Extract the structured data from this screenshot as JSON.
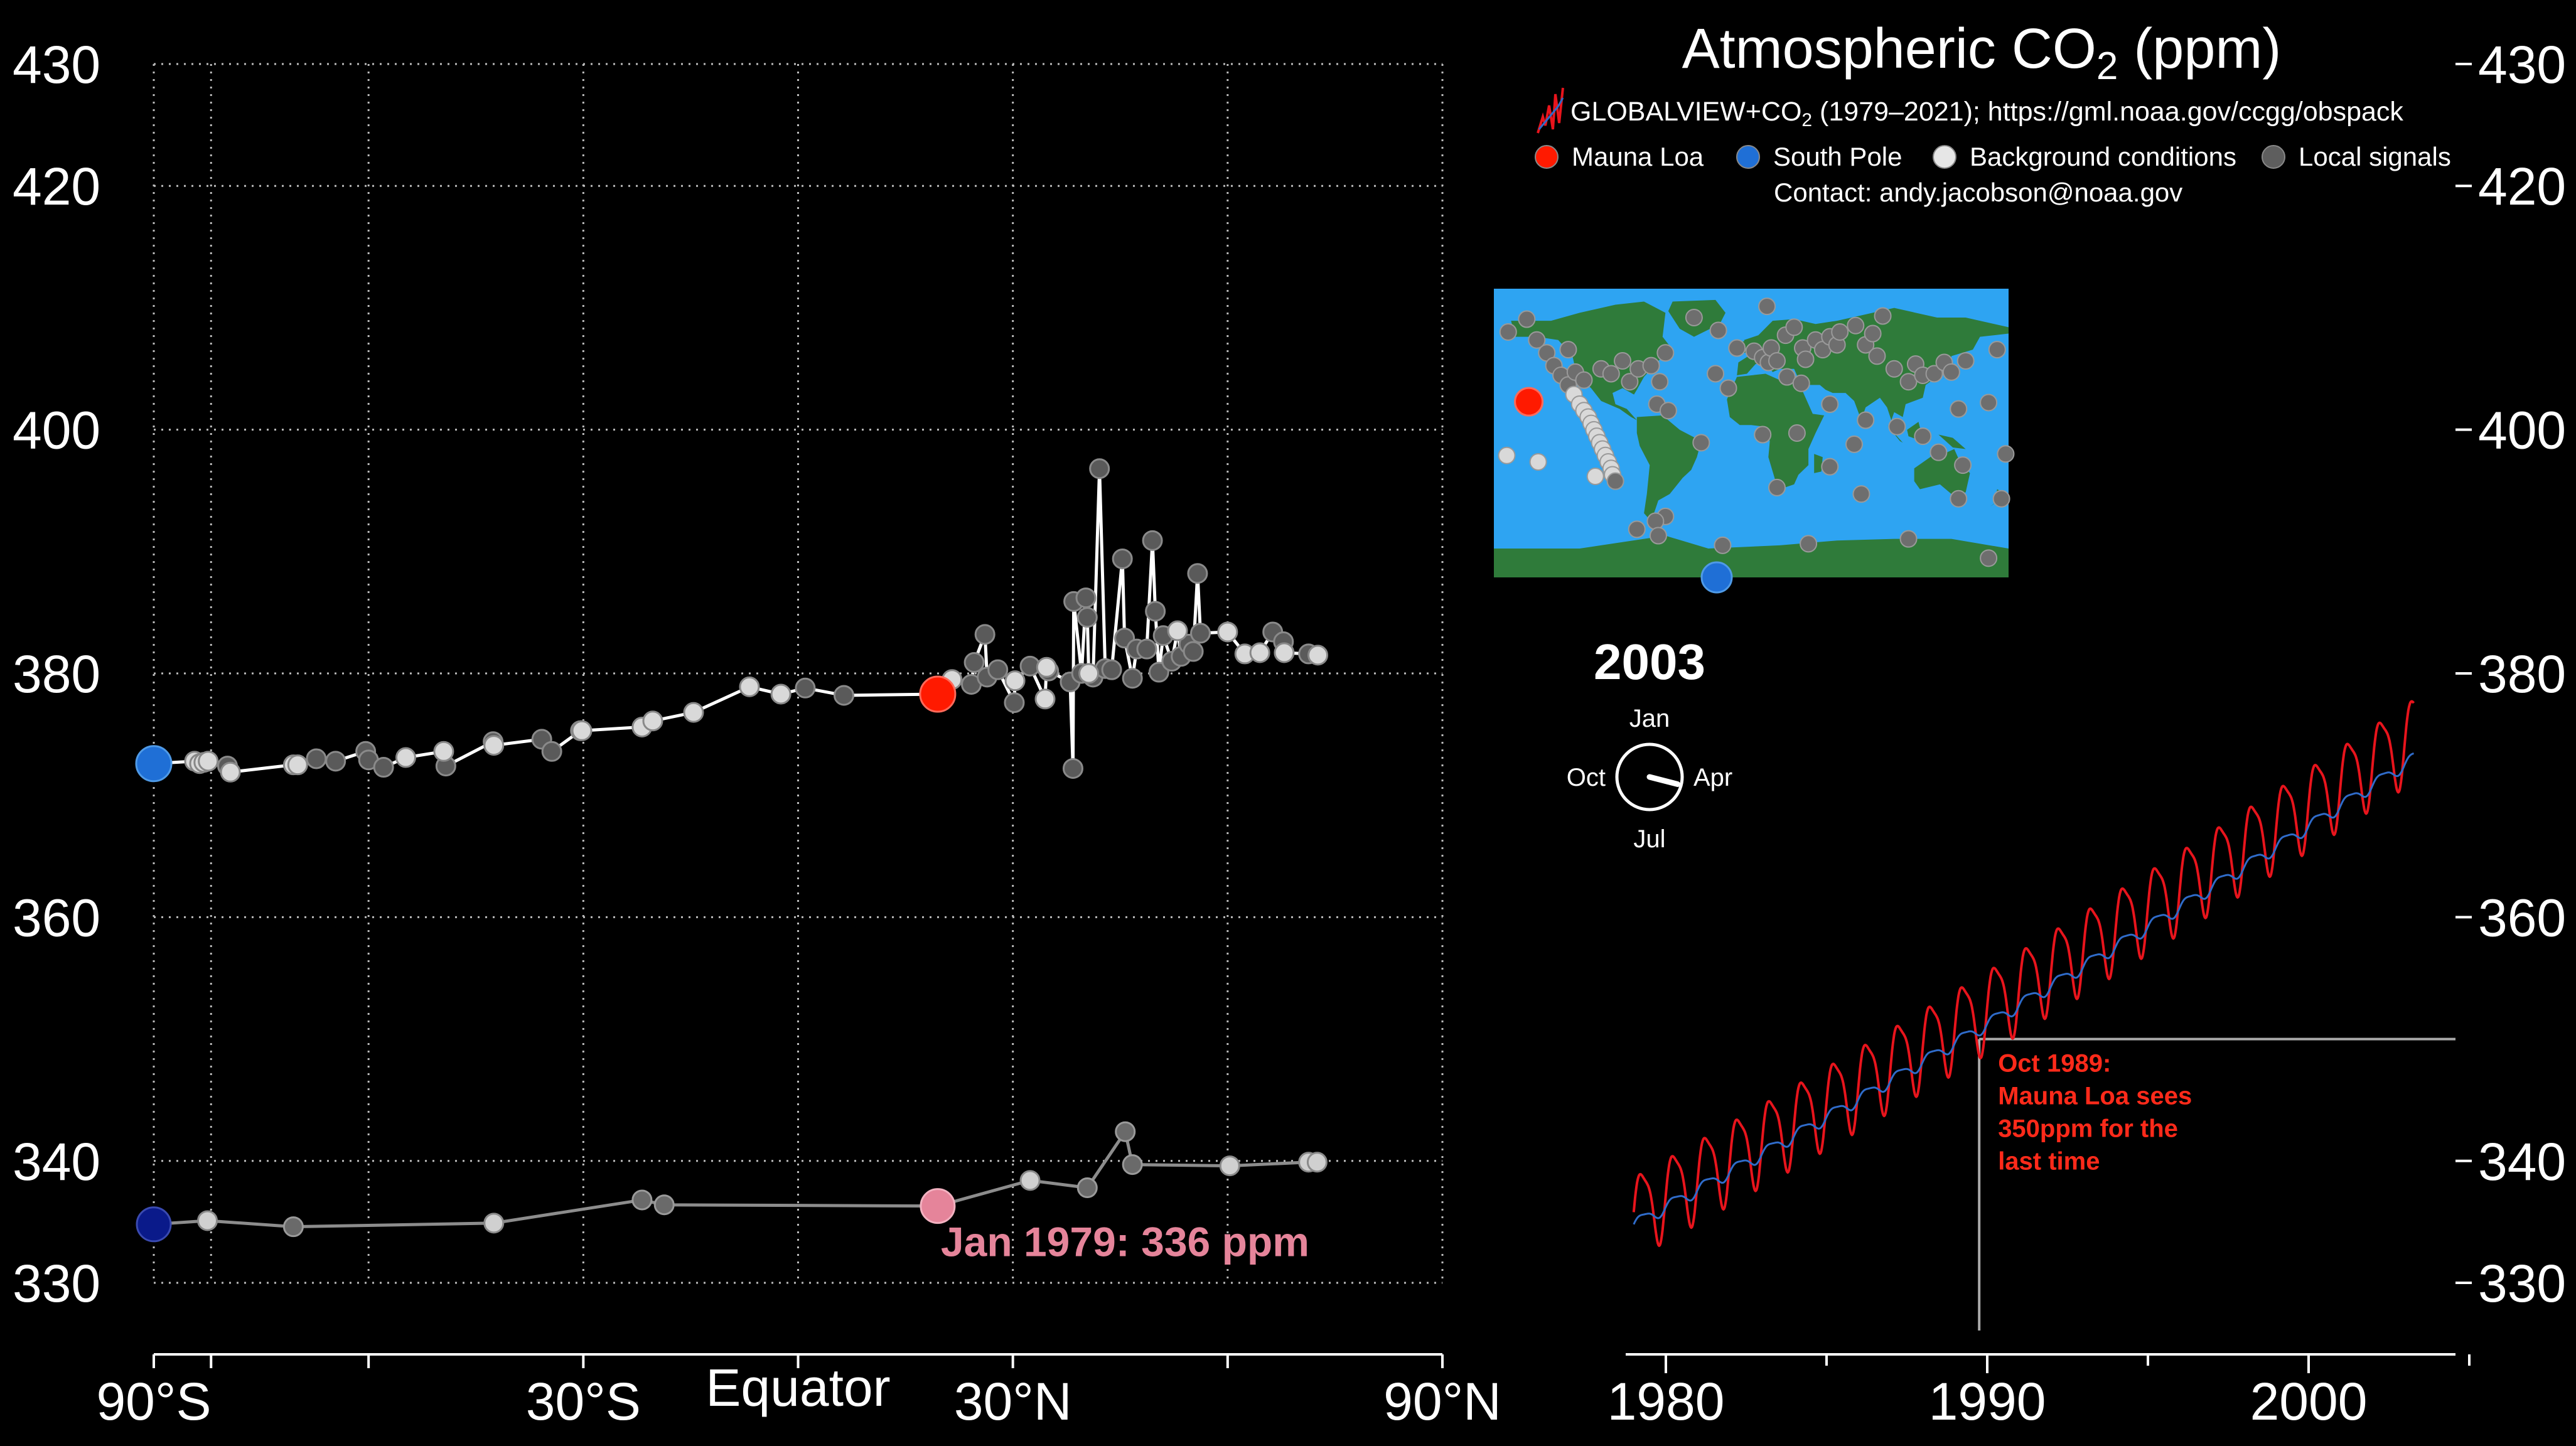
{
  "title": {
    "main": "Atmospheric CO",
    "sub": "2",
    "suffix": " (ppm)"
  },
  "source": {
    "prefix": "GLOBALVIEW+CO",
    "sub": "2",
    "suffix": " (1979–2021); https://gml.noaa.gov/ccgg/obspack"
  },
  "legend": [
    {
      "label": "Mauna Loa",
      "color": "#ff1a00"
    },
    {
      "label": "South Pole",
      "color": "#1f6fd6"
    },
    {
      "label": "Background conditions",
      "color": "#e6e6e6"
    },
    {
      "label": "Local signals",
      "color": "#5e5e5e"
    }
  ],
  "contact": "Contact: andy.jacobson@noaa.gov",
  "year_display": "2003",
  "clock": {
    "labels": {
      "top": "Jan",
      "right": "Apr",
      "bottom": "Jul",
      "left": "Oct"
    },
    "month_fraction": 0.29
  },
  "chart_data": [
    {
      "type": "scatter",
      "name": "latitude-profile",
      "xlabel": "",
      "ylabel": "",
      "x_ticks": [
        {
          "value": -90,
          "label": "90°S"
        },
        {
          "value": -30,
          "label": "30°S"
        },
        {
          "value": 0,
          "label": "Equator"
        },
        {
          "value": 30,
          "label": "30°N"
        },
        {
          "value": 90,
          "label": "90°N"
        }
      ],
      "x_grid": [
        -90,
        -82,
        -60,
        -30,
        0,
        30,
        60,
        90
      ],
      "xlim": [
        -90,
        90
      ],
      "ylim": [
        325,
        435
      ],
      "y_ticks": [
        330,
        340,
        360,
        380,
        400,
        420,
        430
      ],
      "grid": true,
      "current_series": [
        {
          "lat": -90,
          "co2": 372.6,
          "kind": "south_pole"
        },
        {
          "lat": -84.3,
          "co2": 372.8,
          "kind": "bg"
        },
        {
          "lat": -83.6,
          "co2": 372.6,
          "kind": "bg"
        },
        {
          "lat": -83,
          "co2": 372.7,
          "kind": "bg"
        },
        {
          "lat": -82.4,
          "co2": 372.8,
          "kind": "bg"
        },
        {
          "lat": -79.7,
          "co2": 372.4,
          "kind": "local"
        },
        {
          "lat": -79.3,
          "co2": 371.9,
          "kind": "bg"
        },
        {
          "lat": -70.5,
          "co2": 372.5,
          "kind": "bg"
        },
        {
          "lat": -69.9,
          "co2": 372.5,
          "kind": "bg"
        },
        {
          "lat": -67.3,
          "co2": 373,
          "kind": "local"
        },
        {
          "lat": -64.6,
          "co2": 372.8,
          "kind": "local"
        },
        {
          "lat": -60.4,
          "co2": 373.6,
          "kind": "local"
        },
        {
          "lat": -60,
          "co2": 372.9,
          "kind": "local"
        },
        {
          "lat": -57.9,
          "co2": 372.3,
          "kind": "local"
        },
        {
          "lat": -54.8,
          "co2": 373.1,
          "kind": "bg"
        },
        {
          "lat": -49.5,
          "co2": 373.6,
          "kind": "bg"
        },
        {
          "lat": -49.2,
          "co2": 372.4,
          "kind": "local"
        },
        {
          "lat": -42.6,
          "co2": 374.4,
          "kind": "local"
        },
        {
          "lat": -42.5,
          "co2": 374.1,
          "kind": "bg"
        },
        {
          "lat": -35.8,
          "co2": 374.6,
          "kind": "local"
        },
        {
          "lat": -34.4,
          "co2": 373.6,
          "kind": "local"
        },
        {
          "lat": -30.4,
          "co2": 375.3,
          "kind": "local"
        },
        {
          "lat": -30.2,
          "co2": 375.3,
          "kind": "bg"
        },
        {
          "lat": -21.8,
          "co2": 375.6,
          "kind": "bg"
        },
        {
          "lat": -20.3,
          "co2": 376.1,
          "kind": "bg"
        },
        {
          "lat": -14.6,
          "co2": 376.8,
          "kind": "bg"
        },
        {
          "lat": -6.8,
          "co2": 378.9,
          "kind": "bg"
        },
        {
          "lat": -2.4,
          "co2": 378.3,
          "kind": "bg"
        },
        {
          "lat": 1,
          "co2": 378.8,
          "kind": "local"
        },
        {
          "lat": 6.4,
          "co2": 378.2,
          "kind": "local"
        },
        {
          "lat": 19.5,
          "co2": 378.3,
          "kind": "mlo"
        },
        {
          "lat": 21.5,
          "co2": 379.5,
          "kind": "bg"
        },
        {
          "lat": 24.2,
          "co2": 379.1,
          "kind": "local"
        },
        {
          "lat": 24.6,
          "co2": 380.9,
          "kind": "local"
        },
        {
          "lat": 26.1,
          "co2": 383.2,
          "kind": "local"
        },
        {
          "lat": 26.4,
          "co2": 379.7,
          "kind": "local"
        },
        {
          "lat": 27.9,
          "co2": 380.3,
          "kind": "local"
        },
        {
          "lat": 30.2,
          "co2": 377.6,
          "kind": "local"
        },
        {
          "lat": 30.3,
          "co2": 379.4,
          "kind": "bg"
        },
        {
          "lat": 32.4,
          "co2": 380.6,
          "kind": "local"
        },
        {
          "lat": 34.5,
          "co2": 377.9,
          "kind": "bg"
        },
        {
          "lat": 34.7,
          "co2": 380.5,
          "kind": "bg"
        },
        {
          "lat": 35,
          "co2": 380.2,
          "kind": "local"
        },
        {
          "lat": 38,
          "co2": 379.3,
          "kind": "local"
        },
        {
          "lat": 38.4,
          "co2": 372.2,
          "kind": "local"
        },
        {
          "lat": 38.5,
          "co2": 385.9,
          "kind": "local"
        },
        {
          "lat": 39.6,
          "co2": 380,
          "kind": "local"
        },
        {
          "lat": 40.2,
          "co2": 386.2,
          "kind": "local"
        },
        {
          "lat": 40.4,
          "co2": 384.6,
          "kind": "local"
        },
        {
          "lat": 40.6,
          "co2": 380,
          "kind": "bg"
        },
        {
          "lat": 41.2,
          "co2": 379.7,
          "kind": "local"
        },
        {
          "lat": 42.1,
          "co2": 396.8,
          "kind": "local"
        },
        {
          "lat": 42.9,
          "co2": 380.4,
          "kind": "local"
        },
        {
          "lat": 43.8,
          "co2": 380.3,
          "kind": "local"
        },
        {
          "lat": 45.3,
          "co2": 389.4,
          "kind": "local"
        },
        {
          "lat": 45.6,
          "co2": 382.9,
          "kind": "local"
        },
        {
          "lat": 46.7,
          "co2": 379.6,
          "kind": "local"
        },
        {
          "lat": 47.3,
          "co2": 382,
          "kind": "local"
        },
        {
          "lat": 48.7,
          "co2": 382,
          "kind": "local"
        },
        {
          "lat": 49.5,
          "co2": 390.9,
          "kind": "local"
        },
        {
          "lat": 49.9,
          "co2": 385.1,
          "kind": "local"
        },
        {
          "lat": 50.4,
          "co2": 380.1,
          "kind": "local"
        },
        {
          "lat": 51,
          "co2": 383.1,
          "kind": "local"
        },
        {
          "lat": 52.2,
          "co2": 381,
          "kind": "local"
        },
        {
          "lat": 53,
          "co2": 383.5,
          "kind": "bg"
        },
        {
          "lat": 53.5,
          "co2": 381.4,
          "kind": "local"
        },
        {
          "lat": 54.6,
          "co2": 382.4,
          "kind": "local"
        },
        {
          "lat": 55.2,
          "co2": 381.8,
          "kind": "local"
        },
        {
          "lat": 55.8,
          "co2": 388.2,
          "kind": "local"
        },
        {
          "lat": 56.2,
          "co2": 383.3,
          "kind": "local"
        },
        {
          "lat": 60,
          "co2": 383.4,
          "kind": "bg"
        },
        {
          "lat": 62.4,
          "co2": 381.6,
          "kind": "bg"
        },
        {
          "lat": 64.5,
          "co2": 381.7,
          "kind": "bg"
        },
        {
          "lat": 66.3,
          "co2": 383.4,
          "kind": "local"
        },
        {
          "lat": 67.8,
          "co2": 382.6,
          "kind": "local"
        },
        {
          "lat": 67.9,
          "co2": 381.7,
          "kind": "bg"
        },
        {
          "lat": 71.3,
          "co2": 381.6,
          "kind": "local"
        },
        {
          "lat": 72.6,
          "co2": 381.5,
          "kind": "bg"
        }
      ],
      "baseline_series": [
        {
          "lat": -90,
          "co2": 334.8,
          "kind": "south_pole"
        },
        {
          "lat": -82.5,
          "co2": 335.1,
          "kind": "bg"
        },
        {
          "lat": -70.5,
          "co2": 334.6,
          "kind": "local"
        },
        {
          "lat": -42.5,
          "co2": 334.9,
          "kind": "bg"
        },
        {
          "lat": -21.8,
          "co2": 336.8,
          "kind": "local"
        },
        {
          "lat": -18.7,
          "co2": 336.4,
          "kind": "local"
        },
        {
          "lat": 19.5,
          "co2": 336.3,
          "kind": "mlo"
        },
        {
          "lat": 32.4,
          "co2": 338.4,
          "kind": "bg"
        },
        {
          "lat": 40.4,
          "co2": 337.8,
          "kind": "local"
        },
        {
          "lat": 45.7,
          "co2": 342.4,
          "kind": "local"
        },
        {
          "lat": 46.7,
          "co2": 339.7,
          "kind": "local"
        },
        {
          "lat": 60.3,
          "co2": 339.6,
          "kind": "bg"
        },
        {
          "lat": 71.3,
          "co2": 339.9,
          "kind": "bg"
        },
        {
          "lat": 72.5,
          "co2": 339.9,
          "kind": "bg"
        }
      ],
      "annotation": {
        "text": "Jan 1979: 336 ppm",
        "lat": 19.5,
        "co2": 336.3,
        "color": "#e5849a"
      }
    },
    {
      "type": "line",
      "name": "time-series",
      "xlabel": "",
      "ylabel": "",
      "x_ticks": [
        1980,
        1990,
        2000
      ],
      "xlim": [
        1978,
        2007
      ],
      "ylim": [
        325,
        435
      ],
      "y_ticks": [
        330,
        340,
        360,
        380,
        400,
        420,
        430
      ],
      "series": [
        {
          "name": "Mauna Loa",
          "color": "#e8141c",
          "x_start": 1979.0,
          "x_end": 2003.29,
          "trend": {
            "base": 335.8,
            "slope": 1.47,
            "curv": 0.006
          },
          "seasonal_amplitude": 3.2
        },
        {
          "name": "South Pole",
          "color": "#2f6bc9",
          "x_start": 1979.0,
          "x_end": 2003.29,
          "trend": {
            "base": 334.8,
            "slope": 1.43,
            "curv": 0.006
          },
          "seasonal_amplitude": 0.5
        }
      ],
      "threshold": {
        "value": 350,
        "year": 1989.75
      },
      "annotation": {
        "lines": [
          "Oct 1989:",
          "Mauna Loa sees",
          "350ppm for the",
          "last time"
        ],
        "color": "#ff2a1a"
      }
    }
  ],
  "map": {
    "stations": [
      {
        "lon": -170,
        "lat": 63
      },
      {
        "lon": -157,
        "lat": 71
      },
      {
        "lon": -150,
        "lat": 58
      },
      {
        "lon": -143,
        "lat": 50
      },
      {
        "lon": -138,
        "lat": 42
      },
      {
        "lon": -133,
        "lat": 36
      },
      {
        "lon": -128,
        "lat": 30
      },
      {
        "lon": -124,
        "lat": 24
      },
      {
        "lon": -120,
        "lat": 18
      },
      {
        "lon": -117,
        "lat": 14
      },
      {
        "lon": -114,
        "lat": 10
      },
      {
        "lon": -112,
        "lat": 6
      },
      {
        "lon": -110,
        "lat": 2
      },
      {
        "lon": -108,
        "lat": -2
      },
      {
        "lon": -106,
        "lat": -6
      },
      {
        "lon": -104,
        "lat": -10
      },
      {
        "lon": -102,
        "lat": -14
      },
      {
        "lon": -100,
        "lat": -18
      },
      {
        "lon": -98,
        "lat": -22
      },
      {
        "lon": -97,
        "lat": -26
      },
      {
        "lon": -95,
        "lat": -30
      },
      {
        "lon": -156,
        "lat": 20
      },
      {
        "lon": -105,
        "lat": 40
      },
      {
        "lon": -98,
        "lat": 37
      },
      {
        "lon": -90,
        "lat": 45
      },
      {
        "lon": -85,
        "lat": 32
      },
      {
        "lon": -79,
        "lat": 40
      },
      {
        "lon": -70,
        "lat": 42
      },
      {
        "lon": -66,
        "lat": 18
      },
      {
        "lon": -64,
        "lat": 32
      },
      {
        "lon": -60,
        "lat": 50
      },
      {
        "lon": -58,
        "lat": 14
      },
      {
        "lon": -40,
        "lat": 72
      },
      {
        "lon": -23,
        "lat": 64
      },
      {
        "lon": -25,
        "lat": 37
      },
      {
        "lon": -16,
        "lat": 28
      },
      {
        "lon": -35,
        "lat": -6
      },
      {
        "lon": -60,
        "lat": -52
      },
      {
        "lon": -67,
        "lat": -55
      },
      {
        "lon": -65,
        "lat": -64
      },
      {
        "lon": -10,
        "lat": 53
      },
      {
        "lon": 2,
        "lat": 51
      },
      {
        "lon": 8,
        "lat": 47
      },
      {
        "lon": 12,
        "lat": 44
      },
      {
        "lon": 11,
        "lat": 79
      },
      {
        "lon": 24,
        "lat": 61
      },
      {
        "lon": 30,
        "lat": 66
      },
      {
        "lon": 14,
        "lat": 53
      },
      {
        "lon": 18,
        "lat": 45
      },
      {
        "lon": 25,
        "lat": 35
      },
      {
        "lon": 35,
        "lat": 31
      },
      {
        "lon": 36,
        "lat": 53
      },
      {
        "lon": 38,
        "lat": 46
      },
      {
        "lon": 45,
        "lat": 58
      },
      {
        "lon": 50,
        "lat": 52
      },
      {
        "lon": 55,
        "lat": 60
      },
      {
        "lon": 60,
        "lat": 55
      },
      {
        "lon": 62,
        "lat": 63
      },
      {
        "lon": 73,
        "lat": 67
      },
      {
        "lon": 80,
        "lat": 55
      },
      {
        "lon": 85,
        "lat": 62
      },
      {
        "lon": 92,
        "lat": 73
      },
      {
        "lon": 88,
        "lat": 48
      },
      {
        "lon": 100,
        "lat": 40
      },
      {
        "lon": 110,
        "lat": 32
      },
      {
        "lon": 115,
        "lat": 43
      },
      {
        "lon": 120,
        "lat": 36
      },
      {
        "lon": 128,
        "lat": 37
      },
      {
        "lon": 135,
        "lat": 44
      },
      {
        "lon": 140,
        "lat": 38
      },
      {
        "lon": 150,
        "lat": 45
      },
      {
        "lon": 172,
        "lat": 52
      },
      {
        "lon": 145,
        "lat": 15
      },
      {
        "lon": 166,
        "lat": 19
      },
      {
        "lon": 55,
        "lat": 18
      },
      {
        "lon": 32,
        "lat": 0
      },
      {
        "lon": 8,
        "lat": -1
      },
      {
        "lon": 18,
        "lat": -34
      },
      {
        "lon": 55,
        "lat": -21
      },
      {
        "lon": 77,
        "lat": -38
      },
      {
        "lon": 145,
        "lat": -41
      },
      {
        "lon": 175,
        "lat": -41
      },
      {
        "lon": 148,
        "lat": -20
      },
      {
        "lon": 131,
        "lat": -12
      },
      {
        "lon": 120,
        "lat": -2
      },
      {
        "lon": 102,
        "lat": 4
      },
      {
        "lon": 80,
        "lat": 8
      },
      {
        "lon": 72,
        "lat": -7
      },
      {
        "lon": 178,
        "lat": -13
      },
      {
        "lon": -171,
        "lat": -14
      },
      {
        "lon": -149,
        "lat": -18
      },
      {
        "lon": -109,
        "lat": -27
      },
      {
        "lon": -80,
        "lat": -60
      },
      {
        "lon": -20,
        "lat": -70
      },
      {
        "lon": 40,
        "lat": -69
      },
      {
        "lon": 110,
        "lat": -66
      },
      {
        "lon": 166,
        "lat": -78
      },
      {
        "lon": -128,
        "lat": 52
      },
      {
        "lon": -123,
        "lat": 38
      },
      {
        "lon": -117,
        "lat": 33
      }
    ]
  }
}
